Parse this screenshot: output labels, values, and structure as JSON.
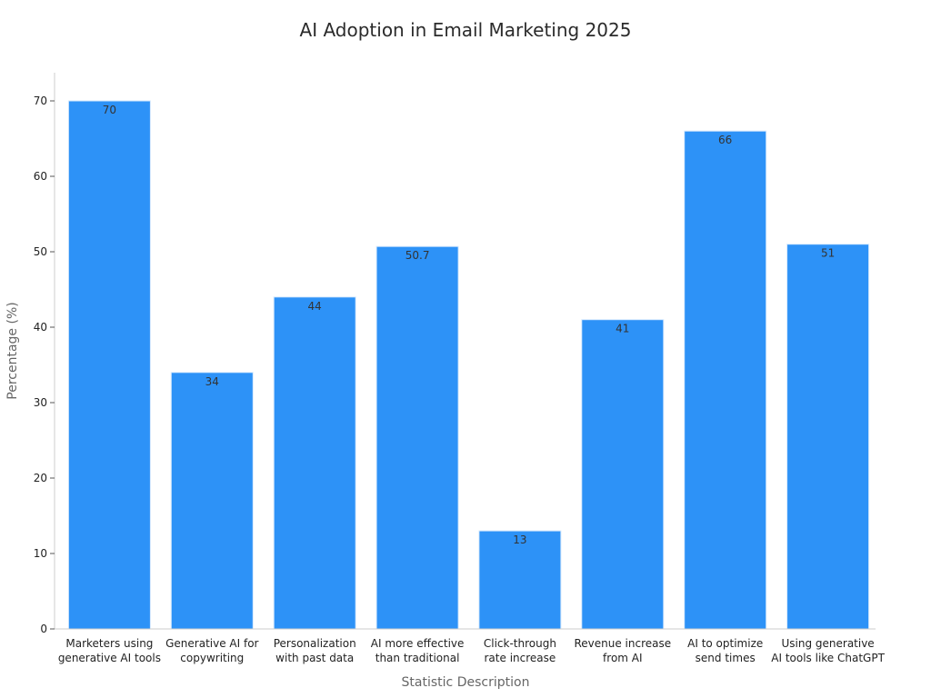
{
  "chart_data": {
    "type": "bar",
    "title": "AI Adoption in Email Marketing 2025",
    "xlabel": "Statistic Description",
    "ylabel": "Percentage (%)",
    "categories": [
      [
        "Marketers using",
        "generative AI tools"
      ],
      [
        "Generative AI for",
        "copywriting"
      ],
      [
        "Personalization",
        "with past data"
      ],
      [
        "AI more effective",
        "than traditional"
      ],
      [
        "Click-through",
        "rate increase"
      ],
      [
        "Revenue increase",
        "from AI"
      ],
      [
        "AI to optimize",
        "send times"
      ],
      [
        "Using generative",
        "AI tools like ChatGPT"
      ]
    ],
    "values": [
      70,
      34,
      44,
      50.7,
      13,
      41,
      66,
      51
    ],
    "value_labels": [
      "70",
      "34",
      "44",
      "50.7",
      "13",
      "41",
      "66",
      "51"
    ],
    "yticks": [
      0,
      10,
      20,
      30,
      40,
      50,
      60,
      70
    ],
    "ylim": [
      0,
      74
    ],
    "grid": false,
    "bar_color": "#2d92f7",
    "bar_edge_color": "#d6e9fd"
  }
}
